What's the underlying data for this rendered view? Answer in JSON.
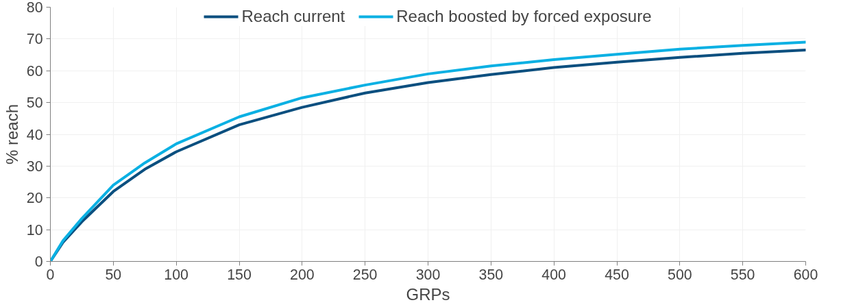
{
  "chart_data": {
    "type": "line",
    "xlabel": "GRPs",
    "ylabel": "% reach",
    "x": [
      0,
      10,
      25,
      50,
      75,
      100,
      150,
      200,
      250,
      300,
      350,
      400,
      450,
      500,
      550,
      600
    ],
    "series": [
      {
        "name": "Reach current",
        "color": "#0b4f7f",
        "values": [
          0,
          6,
          12.5,
          22,
          29,
          34.5,
          43,
          48.5,
          53,
          56.3,
          58.8,
          61,
          62.7,
          64.2,
          65.5,
          66.5
        ]
      },
      {
        "name": "Reach boosted by forced exposure",
        "color": "#0ab0e3",
        "values": [
          0,
          6.5,
          13.5,
          24,
          31,
          37,
          45.5,
          51.5,
          55.5,
          59,
          61.5,
          63.5,
          65.2,
          66.8,
          68,
          69
        ]
      }
    ],
    "xlim": [
      0,
      600
    ],
    "ylim": [
      0,
      80
    ],
    "xticks": [
      0,
      50,
      100,
      150,
      200,
      250,
      300,
      350,
      400,
      450,
      500,
      550,
      600
    ],
    "yticks": [
      0,
      10,
      20,
      30,
      40,
      50,
      60,
      70,
      80
    ],
    "grid": true,
    "legend": "top",
    "marker": "none",
    "line_style": "solid"
  }
}
